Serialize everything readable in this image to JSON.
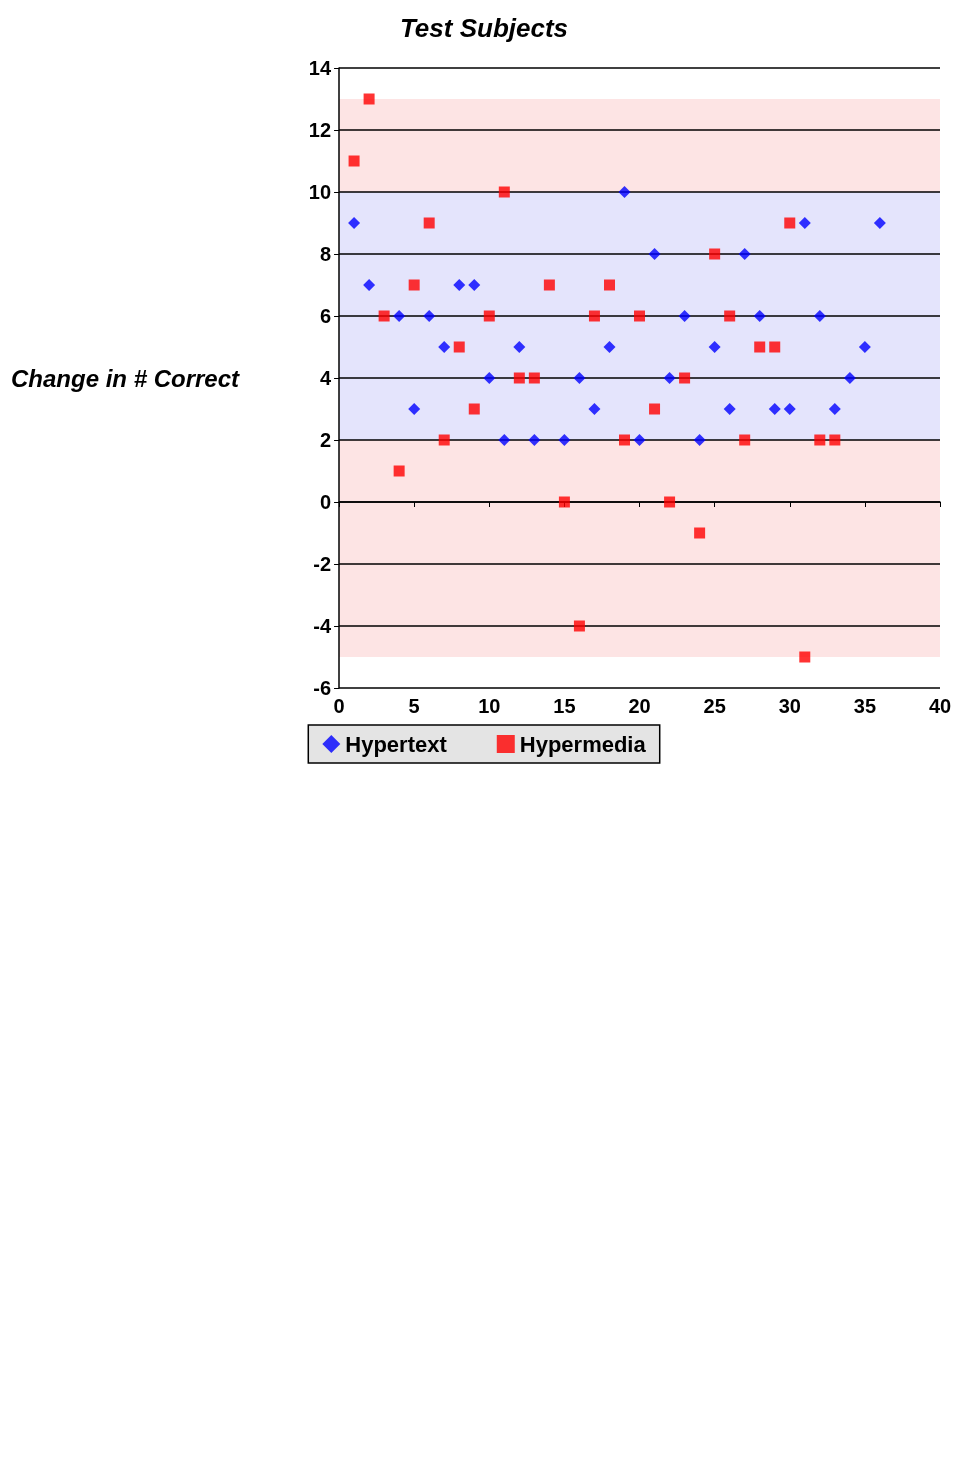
{
  "chart_data": {
    "type": "scatter",
    "title": "Test Subjects",
    "ylabel": "Change in # Correct",
    "xlim": [
      0,
      40
    ],
    "xticks": [
      0,
      5,
      10,
      15,
      20,
      25,
      30,
      35,
      40
    ],
    "ylim": [
      -6,
      14
    ],
    "yticks": [
      -6,
      -4,
      -2,
      0,
      2,
      4,
      6,
      8,
      10,
      12,
      14
    ],
    "grid": "y",
    "legend": "bottom",
    "bands": [
      {
        "axis": "y",
        "from": 10,
        "to": 13,
        "color": "#fde4e4"
      },
      {
        "axis": "y",
        "from": 2,
        "to": 10,
        "color": "#e4e4fc"
      },
      {
        "axis": "y",
        "from": -5,
        "to": 2,
        "color": "#fde4e4"
      }
    ],
    "series": [
      {
        "name": "Hypertext",
        "color": "#0000ff",
        "marker": "diamond",
        "x": [
          1,
          2,
          4,
          5,
          6,
          7,
          8,
          9,
          10,
          11,
          12,
          13,
          15,
          16,
          17,
          18,
          19,
          20,
          21,
          22,
          23,
          24,
          25,
          26,
          27,
          28,
          29,
          30,
          31,
          32,
          33,
          34,
          35,
          36
        ],
        "values": [
          9,
          7,
          6,
          3,
          6,
          5,
          7,
          7,
          4,
          2,
          5,
          2,
          2,
          4,
          3,
          5,
          10,
          2,
          8,
          4,
          6,
          2,
          5,
          3,
          8,
          6,
          3,
          3,
          9,
          6,
          3,
          4,
          5,
          9
        ]
      },
      {
        "name": "Hypermedia",
        "color": "#ff0000",
        "marker": "square",
        "x": [
          1,
          2,
          3,
          4,
          5,
          6,
          7,
          8,
          9,
          10,
          11,
          12,
          13,
          14,
          15,
          16,
          17,
          18,
          19,
          20,
          21,
          22,
          23,
          24,
          25,
          26,
          27,
          28,
          29,
          30,
          31,
          32,
          33
        ],
        "values": [
          11,
          13,
          6,
          1,
          7,
          9,
          2,
          5,
          3,
          6,
          10,
          4,
          4,
          7,
          0,
          -4,
          6,
          7,
          2,
          6,
          3,
          0,
          4,
          -1,
          8,
          6,
          2,
          5,
          5,
          9,
          -5,
          2,
          2
        ]
      }
    ]
  }
}
